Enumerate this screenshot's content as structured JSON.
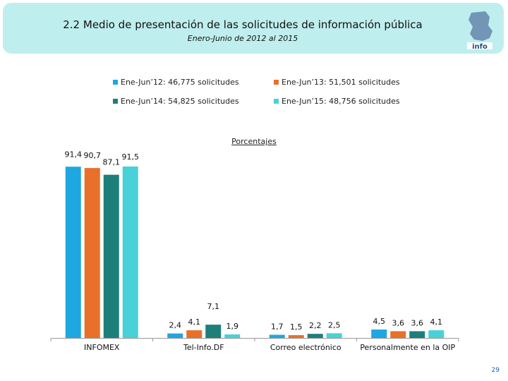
{
  "header": {
    "title": "2.2 Medio de presentación de las solicitudes de información pública",
    "subtitle": "Enero-Junio de 2012 al 2015",
    "logo_text": "info"
  },
  "legend": [
    {
      "label": "Ene-Jun’12: 46,775 solicitudes",
      "color": "#1ea7e0"
    },
    {
      "label": "Ene-Jun’13: 51,501 solicitudes",
      "color": "#e8702a"
    },
    {
      "label": "Ene-Jun’14: 54,825 solicitudes",
      "color": "#1e7f7a"
    },
    {
      "label": "Ene-Jun’15: 48,756 solicitudes",
      "color": "#48d1d8"
    }
  ],
  "chart_data": {
    "type": "bar",
    "title": "Porcentajes",
    "categories": [
      "INFOMEX",
      "Tel-Info.DF",
      "Correo electrónico",
      "Personalmente en la OIP"
    ],
    "series": [
      {
        "name": "Ene-Jun’12: 46,775 solicitudes",
        "values": [
          91.4,
          2.4,
          1.7,
          4.5
        ],
        "labels": [
          "91,4",
          "2,4",
          "1,7",
          "4,5"
        ]
      },
      {
        "name": "Ene-Jun’13: 51,501 solicitudes",
        "values": [
          90.7,
          4.1,
          1.5,
          3.6
        ],
        "labels": [
          "90,7",
          "4,1",
          "1,5",
          "3,6"
        ]
      },
      {
        "name": "Ene-Jun’14: 54,825 solicitudes",
        "values": [
          87.1,
          7.1,
          2.2,
          3.6
        ],
        "labels": [
          "87,1",
          "7,1",
          "2,2",
          "3,6"
        ]
      },
      {
        "name": "Ene-Jun’15: 48,756 solicitudes",
        "values": [
          91.5,
          1.9,
          2.5,
          4.1
        ],
        "labels": [
          "91,5",
          "1,9",
          "2,5",
          "4,1"
        ]
      }
    ],
    "ylim": [
      0,
      100
    ],
    "grid": false,
    "legend_position": "top"
  },
  "footer": {
    "page_number": "29"
  }
}
